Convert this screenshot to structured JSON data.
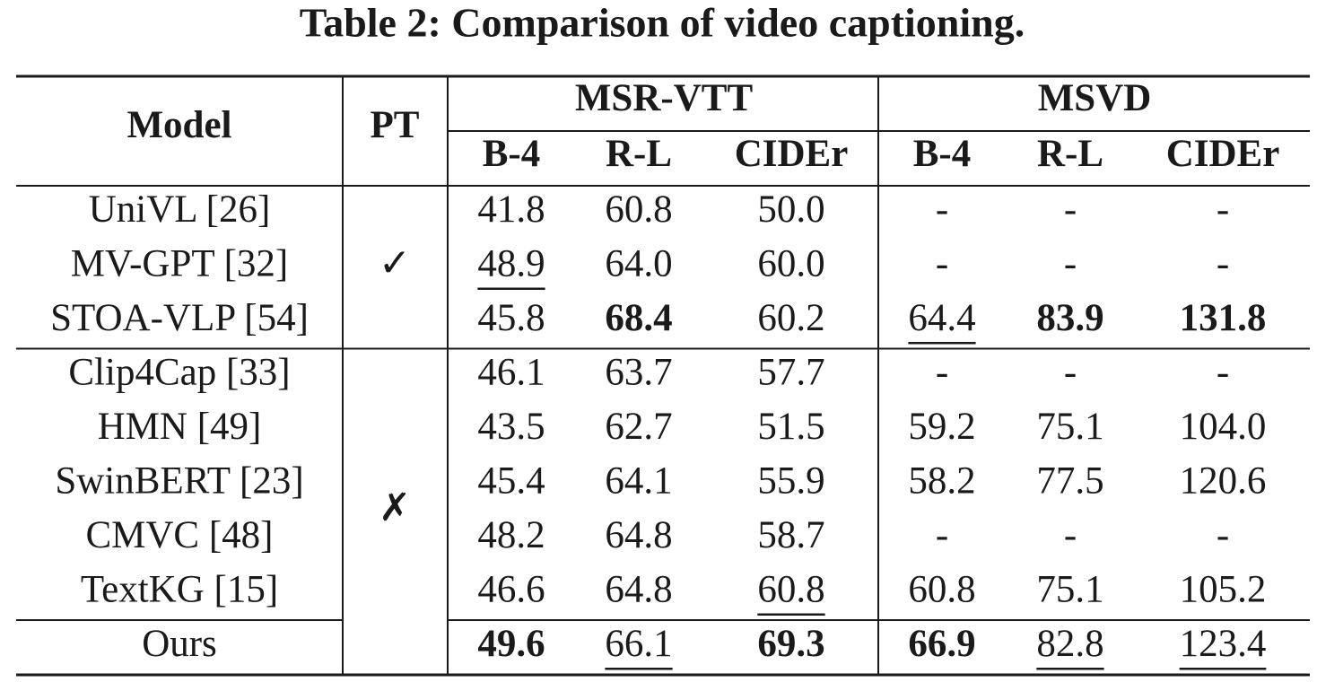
{
  "title": "Table 2: Comparison of video captioning.",
  "table": {
    "header": {
      "model": "Model",
      "pt": "PT",
      "groups": [
        {
          "name": "MSR-VTT",
          "metrics": [
            "B-4",
            "R-L",
            "CIDEr"
          ]
        },
        {
          "name": "MSVD",
          "metrics": [
            "B-4",
            "R-L",
            "CIDEr"
          ]
        }
      ]
    },
    "sections": [
      {
        "pt": "✓",
        "rows": [
          {
            "model": "UniVL [26]",
            "values": [
              "41.8",
              "60.8",
              "50.0",
              "-",
              "-",
              "-"
            ]
          },
          {
            "model": "MV-GPT [32]",
            "values": [
              {
                "text": "48.9",
                "underline": true
              },
              "64.0",
              "60.0",
              "-",
              "-",
              "-"
            ]
          },
          {
            "model": "STOA-VLP [54]",
            "values": [
              "45.8",
              {
                "text": "68.4",
                "bold": true
              },
              "60.2",
              {
                "text": "64.4",
                "underline": true
              },
              {
                "text": "83.9",
                "bold": true
              },
              {
                "text": "131.8",
                "bold": true
              }
            ]
          }
        ]
      },
      {
        "pt": "✗",
        "rows": [
          {
            "model": "Clip4Cap [33]",
            "values": [
              "46.1",
              "63.7",
              "57.7",
              "-",
              "-",
              "-"
            ]
          },
          {
            "model": "HMN [49]",
            "values": [
              "43.5",
              "62.7",
              "51.5",
              "59.2",
              "75.1",
              "104.0"
            ]
          },
          {
            "model": "SwinBERT [23]",
            "values": [
              "45.4",
              "64.1",
              "55.9",
              "58.2",
              "77.5",
              "120.6"
            ]
          },
          {
            "model": "CMVC [48]",
            "values": [
              "48.2",
              "64.8",
              "58.7",
              "-",
              "-",
              "-"
            ]
          },
          {
            "model": "TextKG [15]",
            "values": [
              "46.6",
              "64.8",
              {
                "text": "60.8",
                "underline": true
              },
              "60.8",
              "75.1",
              "105.2"
            ]
          },
          {
            "model": "Ours",
            "values": [
              {
                "text": "49.6",
                "bold": true
              },
              {
                "text": "66.1",
                "underline": true
              },
              {
                "text": "69.3",
                "bold": true
              },
              {
                "text": "66.9",
                "bold": true
              },
              {
                "text": "82.8",
                "underline": true
              },
              {
                "text": "123.4",
                "underline": true
              }
            ]
          }
        ]
      }
    ]
  }
}
